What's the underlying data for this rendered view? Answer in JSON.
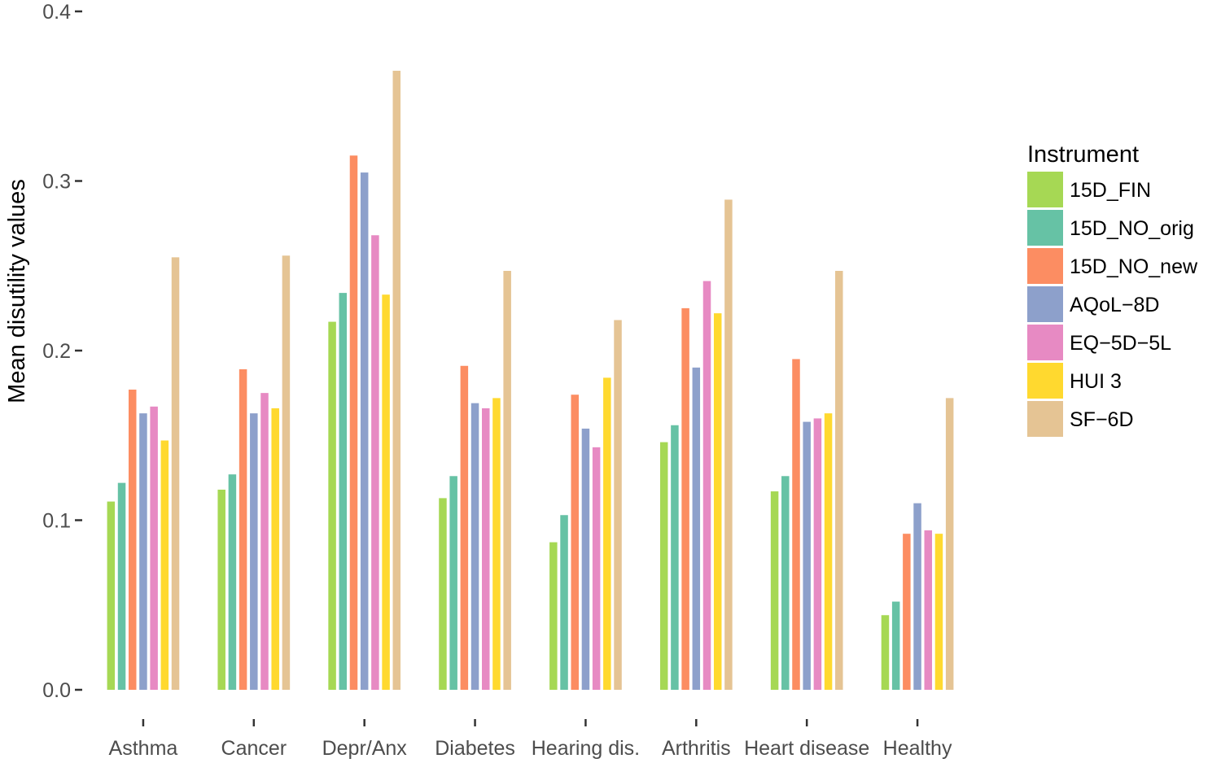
{
  "chart_data": {
    "type": "bar",
    "title": "",
    "xlabel": "",
    "ylabel": "Mean disutility values",
    "ylim": [
      0,
      0.4
    ],
    "yticks": [
      "0.0",
      "0.1",
      "0.2",
      "0.3",
      "0.4"
    ],
    "grid": false,
    "legend": {
      "title": "Instrument",
      "position": "right"
    },
    "categories": [
      "Asthma",
      "Cancer",
      "Depr/Anx",
      "Diabetes",
      "Hearing dis.",
      "Arthritis",
      "Heart disease",
      "Healthy"
    ],
    "series": [
      {
        "name": "15D_FIN",
        "color": "#a6d854",
        "values": [
          0.111,
          0.118,
          0.217,
          0.113,
          0.087,
          0.146,
          0.117,
          0.044
        ]
      },
      {
        "name": "15D_NO_orig",
        "color": "#66c2a5",
        "values": [
          0.122,
          0.127,
          0.234,
          0.126,
          0.103,
          0.156,
          0.126,
          0.052
        ]
      },
      {
        "name": "15D_NO_new",
        "color": "#fc8d62",
        "values": [
          0.177,
          0.189,
          0.315,
          0.191,
          0.174,
          0.225,
          0.195,
          0.092
        ]
      },
      {
        "name": "AQoL−8D",
        "color": "#8da0cb",
        "values": [
          0.163,
          0.163,
          0.305,
          0.169,
          0.154,
          0.19,
          0.158,
          0.11
        ]
      },
      {
        "name": "EQ−5D−5L",
        "color": "#e78ac3",
        "values": [
          0.167,
          0.175,
          0.268,
          0.166,
          0.143,
          0.241,
          0.16,
          0.094
        ]
      },
      {
        "name": "HUI 3",
        "color": "#ffd92f",
        "values": [
          0.147,
          0.166,
          0.233,
          0.172,
          0.184,
          0.222,
          0.163,
          0.092
        ]
      },
      {
        "name": "SF−6D",
        "color": "#e5c494",
        "values": [
          0.255,
          0.256,
          0.365,
          0.247,
          0.218,
          0.289,
          0.247,
          0.172
        ]
      }
    ]
  }
}
